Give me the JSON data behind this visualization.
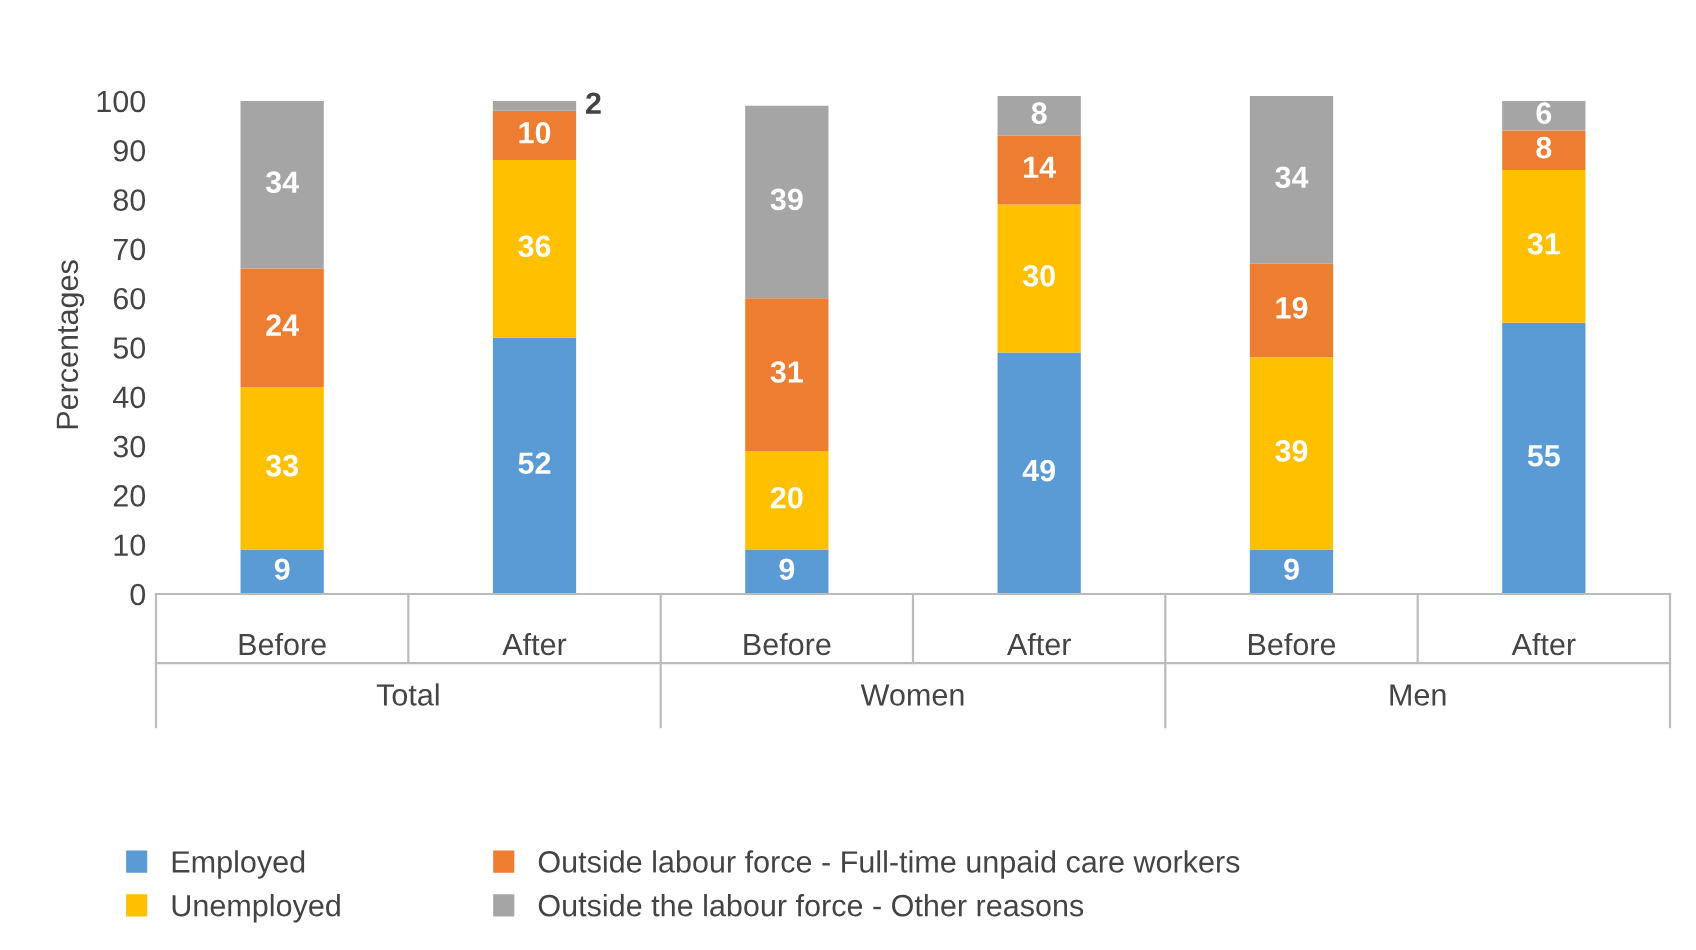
{
  "chart_data": {
    "type": "bar",
    "stacked": true,
    "ylabel": "Percentages",
    "categories": [
      "Before",
      "After",
      "Before",
      "After",
      "Before",
      "After"
    ],
    "annotations": [
      "Total",
      "Women",
      "Men"
    ],
    "series": [
      {
        "name": "Employed",
        "color": "#5b9bd5",
        "values": [
          9,
          52,
          9,
          49,
          9,
          55
        ]
      },
      {
        "name": "Unemployed",
        "color": "#ffc000",
        "values": [
          33,
          36,
          20,
          30,
          39,
          31
        ]
      },
      {
        "name": "Outside labour force - Full-time unpaid care workers",
        "color": "#ed7d31",
        "values": [
          24,
          10,
          31,
          14,
          19,
          8
        ]
      },
      {
        "name": "Outside the labour force - Other reasons",
        "color": "#a5a5a5",
        "values": [
          34,
          2,
          39,
          8,
          34,
          6
        ]
      }
    ],
    "ylim": [
      0,
      101
    ],
    "yticks": [
      0,
      10,
      20,
      30,
      40,
      50,
      60,
      70,
      80,
      90,
      100
    ],
    "data_labels": true,
    "grid": false,
    "legend": "bottom"
  }
}
